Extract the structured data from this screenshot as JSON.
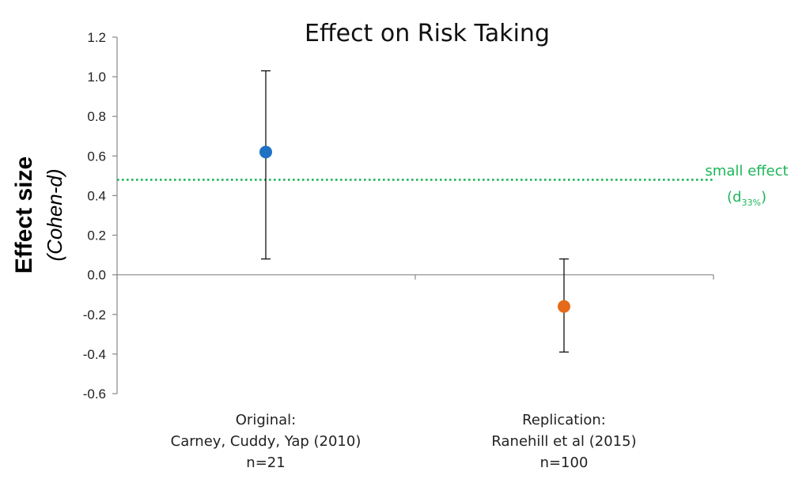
{
  "chart_data": {
    "type": "scatter",
    "title": "Effect on Risk Taking",
    "ylabel": "Effect size",
    "ylabel_sub": "(Cohen-d)",
    "ylim": [
      -0.6,
      1.2
    ],
    "yticks": [
      1.2,
      1.0,
      0.8,
      0.6,
      0.4,
      0.2,
      0.0,
      -0.2,
      -0.4,
      -0.6
    ],
    "ytick_labels": [
      "1.2",
      "1.0",
      "0.8",
      "0.6",
      "0.4",
      "0.2",
      "0.0",
      "-0.2",
      "-0.4",
      "-0.6"
    ],
    "categories": [
      {
        "lines": [
          "Original:",
          "Carney, Cuddy, Yap (2010)",
          "n=21"
        ]
      },
      {
        "lines": [
          "Replication:",
          "Ranehill et al (2015)",
          "n=100"
        ]
      }
    ],
    "points": [
      {
        "value": 0.62,
        "err_low": 0.08,
        "err_high": 1.03,
        "color": "#1f72c4"
      },
      {
        "value": -0.16,
        "err_low": -0.39,
        "err_high": 0.08,
        "color": "#e56b1a"
      }
    ],
    "reference_line": {
      "value": 0.48,
      "label": "small effect",
      "label_main": "(d",
      "label_sub": "33%",
      "label_close": ")",
      "color": "#1db55a",
      "style": "dotted"
    },
    "grid": false
  }
}
